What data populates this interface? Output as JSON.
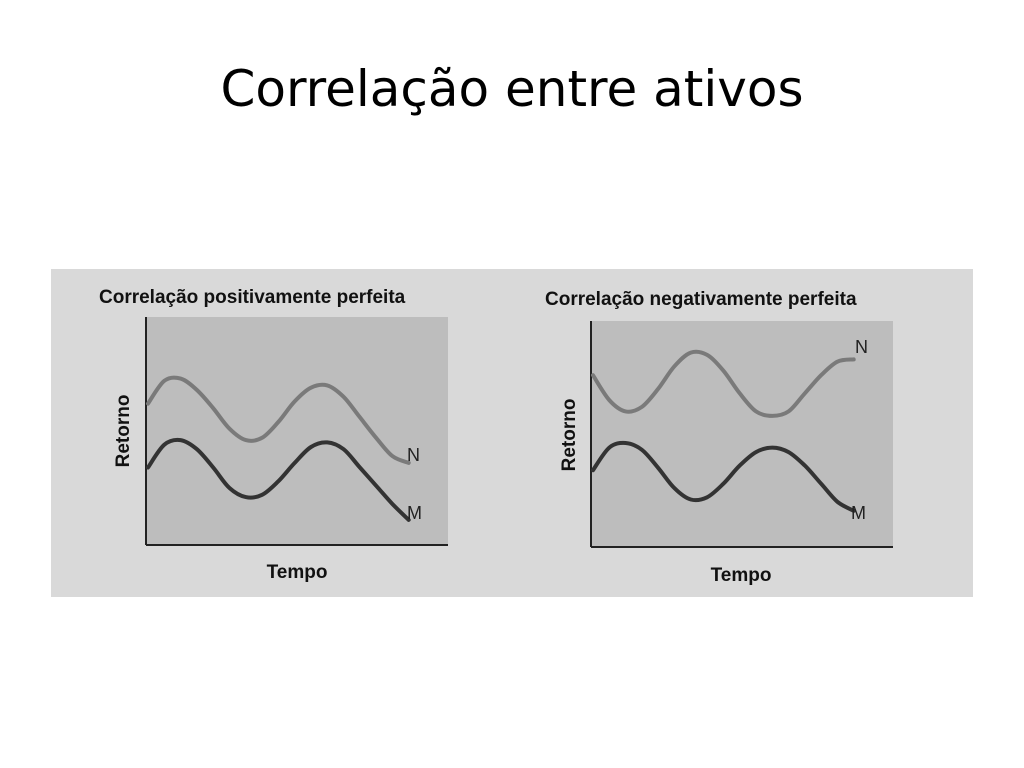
{
  "slide": {
    "title": "Correlação entre ativos"
  },
  "colors": {
    "panel_background": "#d9d9d9",
    "plot_background": "#bdbdbd",
    "axis": "#222222",
    "series_N": "#7a7a7a",
    "series_M": "#333333"
  },
  "chart_data": [
    {
      "type": "line",
      "title": "Correlação positivamente perfeita",
      "xlabel": "Tempo",
      "ylabel": "Retorno",
      "x": [
        0,
        1,
        2,
        3,
        4,
        5,
        6,
        7,
        8,
        9,
        10,
        11,
        12,
        13,
        14,
        15,
        16
      ],
      "xlim": [
        0,
        16
      ],
      "ylim": [
        0,
        10
      ],
      "series": [
        {
          "name": "N",
          "values": [
            6.2,
            7.2,
            7.3,
            6.8,
            6.0,
            5.1,
            4.6,
            4.7,
            5.4,
            6.3,
            6.9,
            7.0,
            6.5,
            5.6,
            4.7,
            3.9,
            3.6
          ]
        },
        {
          "name": "M",
          "values": [
            3.4,
            4.4,
            4.6,
            4.2,
            3.4,
            2.5,
            2.1,
            2.2,
            2.8,
            3.6,
            4.3,
            4.5,
            4.2,
            3.4,
            2.6,
            1.8,
            1.1
          ]
        }
      ]
    },
    {
      "type": "line",
      "title": "Correlação negativamente perfeita",
      "xlabel": "Tempo",
      "ylabel": "Retorno",
      "x": [
        0,
        1,
        2,
        3,
        4,
        5,
        6,
        7,
        8,
        9,
        10,
        11,
        12,
        13,
        14,
        15,
        16
      ],
      "xlim": [
        0,
        16
      ],
      "ylim": [
        0,
        10
      ],
      "series": [
        {
          "name": "N",
          "values": [
            7.6,
            6.5,
            6.0,
            6.2,
            7.0,
            8.0,
            8.6,
            8.5,
            7.8,
            6.8,
            6.0,
            5.8,
            6.0,
            6.8,
            7.6,
            8.2,
            8.3
          ]
        },
        {
          "name": "M",
          "values": [
            3.4,
            4.4,
            4.6,
            4.3,
            3.5,
            2.6,
            2.1,
            2.2,
            2.8,
            3.6,
            4.2,
            4.4,
            4.2,
            3.6,
            2.8,
            2.0,
            1.6
          ]
        }
      ]
    }
  ]
}
